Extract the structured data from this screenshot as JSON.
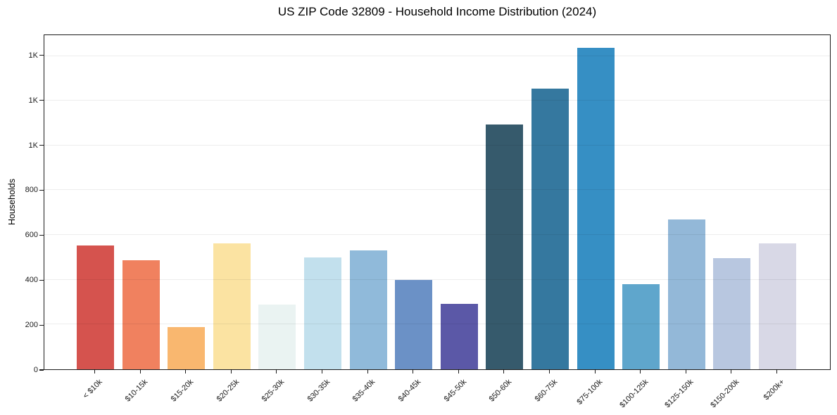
{
  "chart_data": {
    "type": "bar",
    "title": "US ZIP Code 32809 - Household Income Distribution (2024)",
    "xlabel": "",
    "ylabel": "Households",
    "categories": [
      "< $10k",
      "$10-15k",
      "$15-20k",
      "$20-25k",
      "$25-30k",
      "$30-35k",
      "$35-40k",
      "$40-45k",
      "$45-50k",
      "$50-60k",
      "$60-75k",
      "$75-100k",
      "$100-125k",
      "$125-150k",
      "$150-200k",
      "$200k+"
    ],
    "values": [
      553,
      488,
      188,
      562,
      288,
      499,
      530,
      400,
      293,
      1094,
      1253,
      1435,
      381,
      668,
      498,
      562
    ],
    "bar_colors": [
      "#d5534e",
      "#f0815f",
      "#f9b76f",
      "#fbe3a2",
      "#eaf3f2",
      "#c2e0ed",
      "#90bada",
      "#6b91c6",
      "#5b58a7",
      "#365a6c",
      "#35789f",
      "#368fc4",
      "#5fa6cc",
      "#93b8d8",
      "#b8c7e0",
      "#d8d8e6"
    ],
    "ylim": [
      0,
      1493
    ],
    "yticks": [
      {
        "value": 0,
        "label": "0"
      },
      {
        "value": 200,
        "label": "200"
      },
      {
        "value": 400,
        "label": "400"
      },
      {
        "value": 600,
        "label": "600"
      },
      {
        "value": 800,
        "label": "800"
      },
      {
        "value": 1000,
        "label": "1K"
      },
      {
        "value": 1200,
        "label": "1K"
      },
      {
        "value": 1400,
        "label": "1K"
      }
    ],
    "grid": "horizontal",
    "legend": "none"
  }
}
